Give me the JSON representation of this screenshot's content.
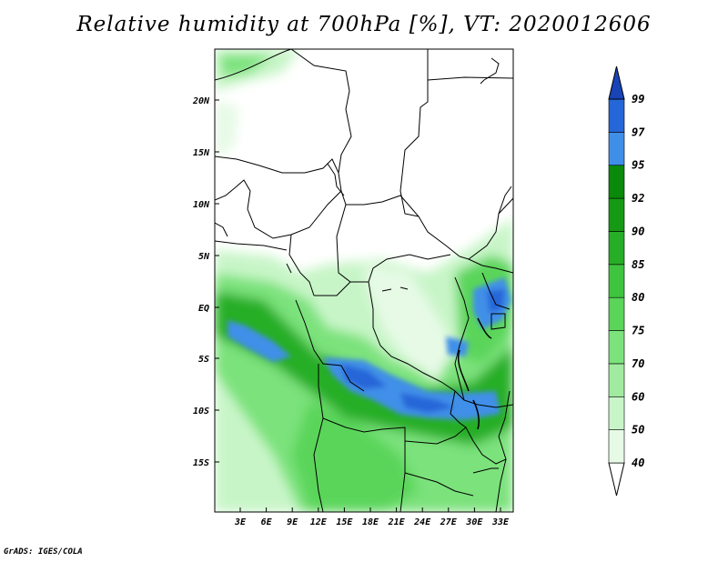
{
  "title": "Relative humidity at 700hPa [%], VT: 2020012606",
  "credit": "GrADS: IGES/COLA",
  "map": {
    "lat_ticks": [
      "20N",
      "15N",
      "10N",
      "5N",
      "EQ",
      "5S",
      "10S",
      "15S"
    ],
    "lon_ticks": [
      "3E",
      "6E",
      "9E",
      "12E",
      "15E",
      "18E",
      "21E",
      "24E",
      "27E",
      "30E",
      "33E"
    ]
  },
  "colorbar": {
    "levels": [
      "40",
      "50",
      "60",
      "70",
      "75",
      "80",
      "85",
      "90",
      "92",
      "95",
      "97",
      "99"
    ],
    "colors": [
      "#ffffff",
      "#e6fae6",
      "#c8f5c8",
      "#a0eba0",
      "#7ce27c",
      "#5ad55a",
      "#3fc43f",
      "#27ae27",
      "#169a16",
      "#0a8a0a",
      "#3f8fe8",
      "#2566d8",
      "#1844b8"
    ]
  }
}
